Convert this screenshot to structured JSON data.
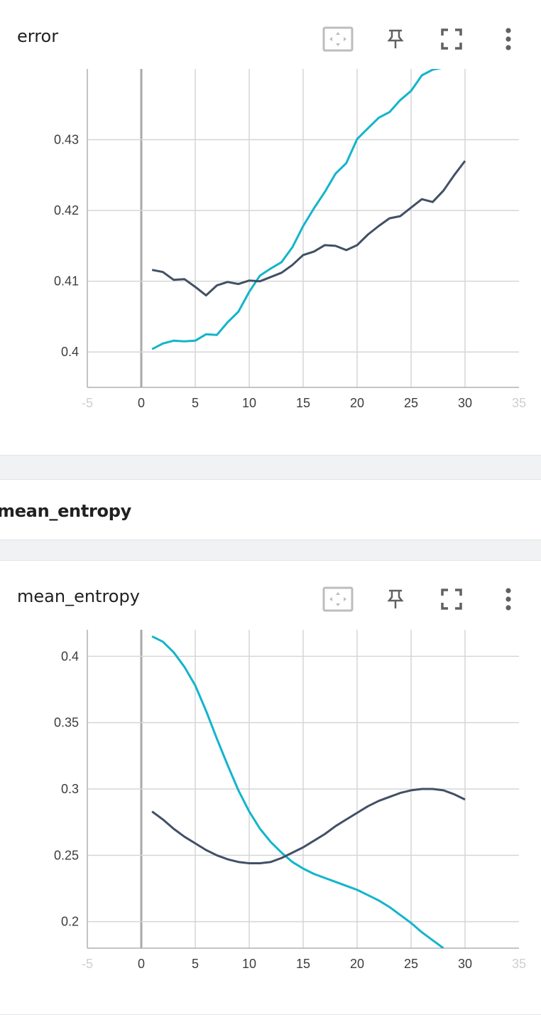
{
  "charts": [
    {
      "card_title": "error",
      "toolbar": {
        "fit_icon": "fit-domain-icon",
        "pin_icon": "pin-icon",
        "fullscreen_icon": "fullscreen-icon",
        "menu_icon": "more-vert-icon"
      },
      "chart_data": {
        "type": "line",
        "title": "",
        "xlabel": "",
        "ylabel": "",
        "xlim": [
          -5,
          35
        ],
        "ylim": [
          0.395,
          0.44
        ],
        "x_ticks": [
          "-5",
          "0",
          "5",
          "10",
          "15",
          "20",
          "25",
          "30",
          "35"
        ],
        "y_ticks": [
          "0.4",
          "0.41",
          "0.42",
          "0.43"
        ],
        "grid": true,
        "series": [
          {
            "color": "#12b5cb",
            "x": [
              1,
              2,
              3,
              4,
              5,
              6,
              7,
              8,
              9,
              10,
              11,
              12,
              13,
              14,
              15,
              16,
              17,
              18,
              19,
              20,
              21,
              22,
              23,
              24,
              25,
              26,
              27,
              28
            ],
            "values": [
              0.4004,
              0.4012,
              0.4016,
              0.4015,
              0.4016,
              0.4025,
              0.4024,
              0.4042,
              0.4057,
              0.4085,
              0.4108,
              0.4118,
              0.4127,
              0.4148,
              0.4178,
              0.4203,
              0.4226,
              0.4252,
              0.4267,
              0.4301,
              0.4316,
              0.4331,
              0.4339,
              0.4356,
              0.4369,
              0.4391,
              0.4399,
              0.4402
            ]
          },
          {
            "color": "#425066",
            "x": [
              1,
              2,
              3,
              4,
              5,
              6,
              7,
              8,
              9,
              10,
              11,
              12,
              13,
              14,
              15,
              16,
              17,
              18,
              19,
              20,
              21,
              22,
              23,
              24,
              25,
              26,
              27,
              28,
              29,
              30
            ],
            "values": [
              0.4116,
              0.4113,
              0.4102,
              0.4103,
              0.4092,
              0.408,
              0.4094,
              0.4099,
              0.4096,
              0.4101,
              0.41,
              0.4106,
              0.4112,
              0.4123,
              0.4137,
              0.4142,
              0.4151,
              0.415,
              0.4144,
              0.4151,
              0.4166,
              0.4178,
              0.4189,
              0.4192,
              0.4204,
              0.4216,
              0.4212,
              0.4228,
              0.425,
              0.427
            ]
          }
        ]
      }
    },
    {
      "group_title": "mean_entropy",
      "card_title": "mean_entropy",
      "toolbar": {
        "fit_icon": "fit-domain-icon",
        "pin_icon": "pin-icon",
        "fullscreen_icon": "fullscreen-icon",
        "menu_icon": "more-vert-icon"
      },
      "chart_data": {
        "type": "line",
        "title": "",
        "xlabel": "",
        "ylabel": "",
        "xlim": [
          -5,
          35
        ],
        "ylim": [
          0.18,
          0.42
        ],
        "x_ticks": [
          "-5",
          "0",
          "5",
          "10",
          "15",
          "20",
          "25",
          "30",
          "35"
        ],
        "y_ticks": [
          "0.2",
          "0.25",
          "0.3",
          "0.35",
          "0.4"
        ],
        "grid": true,
        "series": [
          {
            "color": "#12b5cb",
            "x": [
              1,
              2,
              3,
              4,
              5,
              6,
              7,
              8,
              9,
              10,
              11,
              12,
              13,
              14,
              15,
              16,
              17,
              18,
              19,
              20,
              21,
              22,
              23,
              24,
              25,
              26,
              27,
              28
            ],
            "values": [
              0.415,
              0.411,
              0.403,
              0.392,
              0.378,
              0.359,
              0.338,
              0.318,
              0.299,
              0.283,
              0.27,
              0.26,
              0.252,
              0.245,
              0.24,
              0.236,
              0.233,
              0.23,
              0.227,
              0.224,
              0.22,
              0.216,
              0.211,
              0.205,
              0.199,
              0.192,
              0.186,
              0.18
            ]
          },
          {
            "color": "#425066",
            "x": [
              1,
              2,
              3,
              4,
              5,
              6,
              7,
              8,
              9,
              10,
              11,
              12,
              13,
              14,
              15,
              16,
              17,
              18,
              19,
              20,
              21,
              22,
              23,
              24,
              25,
              26,
              27,
              28,
              29,
              30
            ],
            "values": [
              0.283,
              0.277,
              0.27,
              0.264,
              0.259,
              0.254,
              0.25,
              0.247,
              0.245,
              0.244,
              0.244,
              0.245,
              0.248,
              0.252,
              0.256,
              0.261,
              0.266,
              0.272,
              0.277,
              0.282,
              0.287,
              0.291,
              0.294,
              0.297,
              0.299,
              0.3,
              0.3,
              0.299,
              0.296,
              0.292
            ]
          }
        ]
      }
    }
  ]
}
